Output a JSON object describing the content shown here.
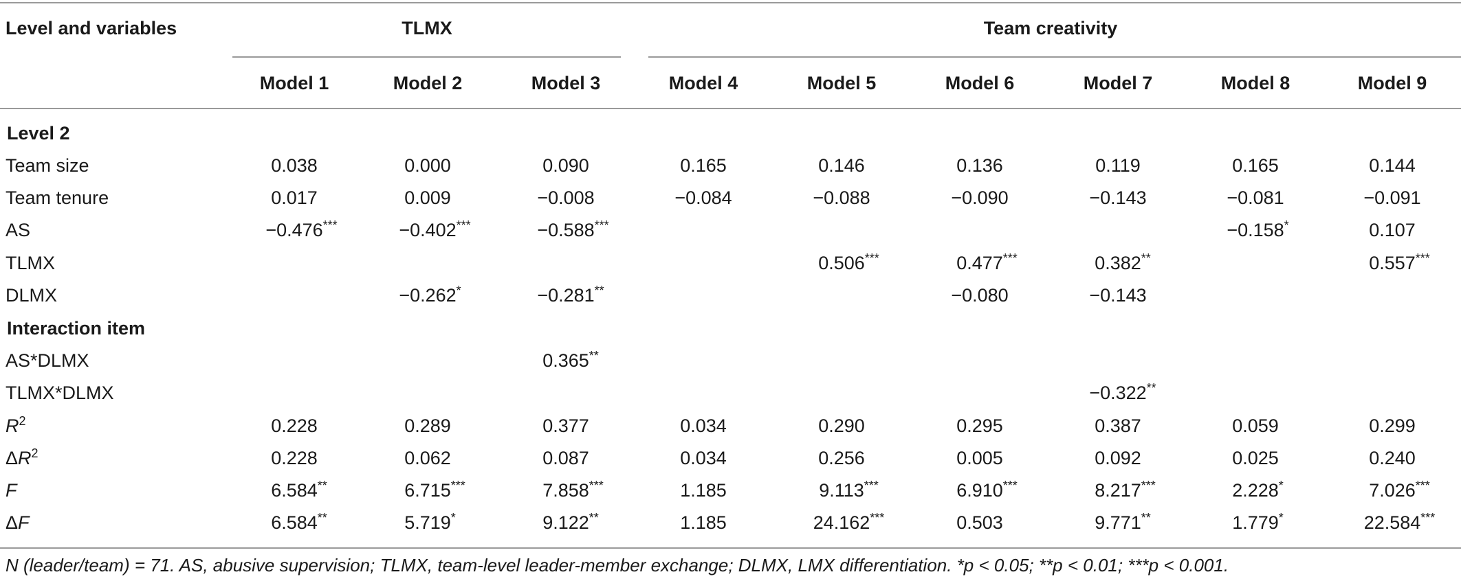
{
  "header": {
    "stub": "Level and variables",
    "group_tlmx": "TLMX",
    "group_team": "Team creativity",
    "models": [
      "Model 1",
      "Model 2",
      "Model 3",
      "Model 4",
      "Model 5",
      "Model 6",
      "Model 7",
      "Model 8",
      "Model 9"
    ]
  },
  "sections": {
    "level2": "Level 2",
    "interaction": "Interaction item"
  },
  "rows": [
    {
      "label": "Team size",
      "cells": [
        [
          "0.038",
          ""
        ],
        [
          "0.000",
          ""
        ],
        [
          "0.090",
          ""
        ],
        [
          "0.165",
          ""
        ],
        [
          "0.146",
          ""
        ],
        [
          "0.136",
          ""
        ],
        [
          "0.119",
          ""
        ],
        [
          "0.165",
          ""
        ],
        [
          "0.144",
          ""
        ]
      ]
    },
    {
      "label": "Team tenure",
      "cells": [
        [
          "0.017",
          ""
        ],
        [
          "0.009",
          ""
        ],
        [
          "−0.008",
          ""
        ],
        [
          "−0.084",
          ""
        ],
        [
          "−0.088",
          ""
        ],
        [
          "−0.090",
          ""
        ],
        [
          "−0.143",
          ""
        ],
        [
          "−0.081",
          ""
        ],
        [
          "−0.091",
          ""
        ]
      ]
    },
    {
      "label": "AS",
      "cells": [
        [
          "−0.476",
          "***"
        ],
        [
          "−0.402",
          "***"
        ],
        [
          "−0.588",
          "***"
        ],
        [
          "",
          ""
        ],
        [
          "",
          ""
        ],
        [
          "",
          ""
        ],
        [
          "",
          ""
        ],
        [
          "−0.158",
          "*"
        ],
        [
          "0.107",
          ""
        ]
      ]
    },
    {
      "label": "TLMX",
      "cells": [
        [
          "",
          ""
        ],
        [
          "",
          ""
        ],
        [
          "",
          ""
        ],
        [
          "",
          ""
        ],
        [
          "0.506",
          "***"
        ],
        [
          "0.477",
          "***"
        ],
        [
          "0.382",
          "**"
        ],
        [
          "",
          ""
        ],
        [
          "0.557",
          "***"
        ]
      ]
    },
    {
      "label": "DLMX",
      "cells": [
        [
          "",
          ""
        ],
        [
          "−0.262",
          "*"
        ],
        [
          "−0.281",
          "**"
        ],
        [
          "",
          ""
        ],
        [
          "",
          ""
        ],
        [
          "−0.080",
          ""
        ],
        [
          "−0.143",
          ""
        ],
        [
          "",
          ""
        ],
        [
          "",
          ""
        ]
      ]
    },
    {
      "label": "AS*DLMX",
      "cells": [
        [
          "",
          ""
        ],
        [
          "",
          ""
        ],
        [
          "0.365",
          "**"
        ],
        [
          "",
          ""
        ],
        [
          "",
          ""
        ],
        [
          "",
          ""
        ],
        [
          "",
          ""
        ],
        [
          "",
          ""
        ],
        [
          "",
          ""
        ]
      ]
    },
    {
      "label": "TLMX*DLMX",
      "cells": [
        [
          "",
          ""
        ],
        [
          "",
          ""
        ],
        [
          "",
          ""
        ],
        [
          "",
          ""
        ],
        [
          "",
          ""
        ],
        [
          "",
          ""
        ],
        [
          "−0.322",
          "**"
        ],
        [
          "",
          ""
        ],
        [
          "",
          ""
        ]
      ]
    },
    {
      "label": "R",
      "label_sup": "2",
      "cells": [
        [
          "0.228",
          ""
        ],
        [
          "0.289",
          ""
        ],
        [
          "0.377",
          ""
        ],
        [
          "0.034",
          ""
        ],
        [
          "0.290",
          ""
        ],
        [
          "0.295",
          ""
        ],
        [
          "0.387",
          ""
        ],
        [
          "0.059",
          ""
        ],
        [
          "0.299",
          ""
        ]
      ]
    },
    {
      "label": "ΔR",
      "label_sup": "2",
      "cells": [
        [
          "0.228",
          ""
        ],
        [
          "0.062",
          ""
        ],
        [
          "0.087",
          ""
        ],
        [
          "0.034",
          ""
        ],
        [
          "0.256",
          ""
        ],
        [
          "0.005",
          ""
        ],
        [
          "0.092",
          ""
        ],
        [
          "0.025",
          ""
        ],
        [
          "0.240",
          ""
        ]
      ]
    },
    {
      "label": "F",
      "cells": [
        [
          "6.584",
          "**"
        ],
        [
          "6.715",
          "***"
        ],
        [
          "7.858",
          "***"
        ],
        [
          "1.185",
          ""
        ],
        [
          "9.113",
          "***"
        ],
        [
          "6.910",
          "***"
        ],
        [
          "8.217",
          "***"
        ],
        [
          "2.228",
          "*"
        ],
        [
          "7.026",
          "***"
        ]
      ]
    },
    {
      "label": "ΔF",
      "cells": [
        [
          "6.584",
          "**"
        ],
        [
          "5.719",
          "*"
        ],
        [
          "9.122",
          "**"
        ],
        [
          "1.185",
          ""
        ],
        [
          "24.162",
          "***"
        ],
        [
          "0.503",
          ""
        ],
        [
          "9.771",
          "**"
        ],
        [
          "1.779",
          "*"
        ],
        [
          "22.584",
          "***"
        ]
      ]
    }
  ],
  "note": "N (leader/team) = 71. AS, abusive supervision; TLMX, team-level leader-member exchange; DLMX, LMX differentiation. *p < 0.05; **p < 0.01; ***p < 0.001."
}
